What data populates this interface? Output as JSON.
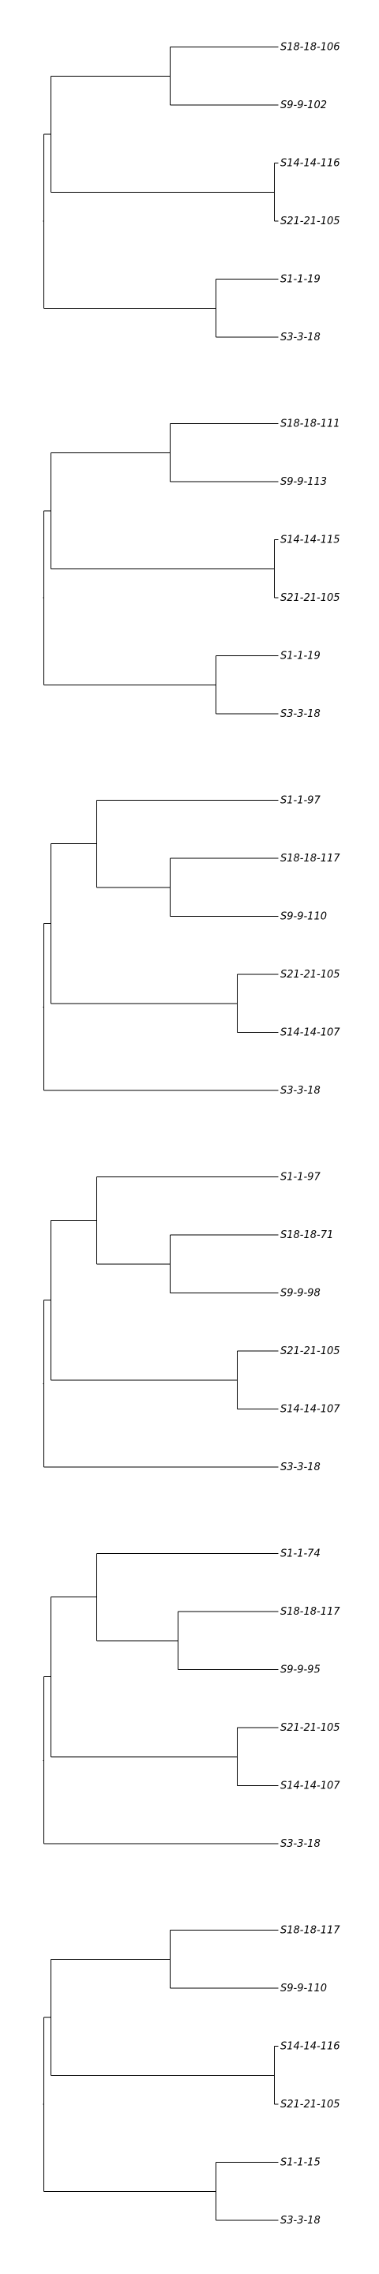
{
  "trees": [
    {
      "id": "tree-1",
      "leaves": [
        {
          "id": "a",
          "label": "S18-18-106"
        },
        {
          "id": "b",
          "label": "S9-9-102"
        },
        {
          "id": "c",
          "label": "S14-14-116"
        },
        {
          "id": "d",
          "label": "S21-21-105"
        },
        {
          "id": "e",
          "label": "S1-1-19"
        },
        {
          "id": "f",
          "label": "S3-3-18"
        }
      ],
      "clades": [
        {
          "id": "n1",
          "children": [
            "a",
            "b"
          ]
        },
        {
          "id": "n2",
          "children": [
            "c",
            "d"
          ]
        },
        {
          "id": "n3",
          "children": [
            "e",
            "f"
          ]
        },
        {
          "id": "n4",
          "children": [
            "n1",
            "n2"
          ]
        },
        {
          "id": "root",
          "children": [
            "n4",
            "n3"
          ]
        }
      ]
    },
    {
      "id": "tree-2",
      "leaves": [
        {
          "id": "a",
          "label": "S18-18-111"
        },
        {
          "id": "b",
          "label": "S9-9-113"
        },
        {
          "id": "c",
          "label": "S14-14-115"
        },
        {
          "id": "d",
          "label": "S21-21-105"
        },
        {
          "id": "e",
          "label": "S1-1-19"
        },
        {
          "id": "f",
          "label": "S3-3-18"
        }
      ],
      "clades": [
        {
          "id": "n1",
          "children": [
            "a",
            "b"
          ]
        },
        {
          "id": "n2",
          "children": [
            "c",
            "d"
          ]
        },
        {
          "id": "n3",
          "children": [
            "e",
            "f"
          ]
        },
        {
          "id": "n4",
          "children": [
            "n1",
            "n2"
          ]
        },
        {
          "id": "root",
          "children": [
            "n4",
            "n3"
          ]
        }
      ]
    },
    {
      "id": "tree-3",
      "leaves": [
        {
          "id": "a",
          "label": "S1-1-97"
        },
        {
          "id": "b",
          "label": "S18-18-117"
        },
        {
          "id": "c",
          "label": "S9-9-110"
        },
        {
          "id": "d",
          "label": "S21-21-105"
        },
        {
          "id": "e",
          "label": "S14-14-107"
        },
        {
          "id": "f",
          "label": "S3-3-18"
        }
      ],
      "clades": [
        {
          "id": "n1",
          "children": [
            "b",
            "c"
          ]
        },
        {
          "id": "n2",
          "children": [
            "a",
            "n1"
          ]
        },
        {
          "id": "n3",
          "children": [
            "d",
            "e"
          ]
        },
        {
          "id": "n4",
          "children": [
            "n2",
            "n3"
          ]
        },
        {
          "id": "root",
          "children": [
            "n4",
            "f"
          ]
        }
      ]
    },
    {
      "id": "tree-4",
      "leaves": [
        {
          "id": "a",
          "label": "S1-1-97"
        },
        {
          "id": "b",
          "label": "S18-18-71"
        },
        {
          "id": "c",
          "label": "S9-9-98"
        },
        {
          "id": "d",
          "label": "S21-21-105"
        },
        {
          "id": "e",
          "label": "S14-14-107"
        },
        {
          "id": "f",
          "label": "S3-3-18"
        }
      ],
      "clades": [
        {
          "id": "n1",
          "children": [
            "b",
            "c"
          ]
        },
        {
          "id": "n2",
          "children": [
            "a",
            "n1"
          ]
        },
        {
          "id": "n3",
          "children": [
            "d",
            "e"
          ]
        },
        {
          "id": "n4",
          "children": [
            "n2",
            "n3"
          ]
        },
        {
          "id": "root",
          "children": [
            "n4",
            "f"
          ]
        }
      ]
    },
    {
      "id": "tree-5",
      "leaves": [
        {
          "id": "a",
          "label": "S1-1-74"
        },
        {
          "id": "b",
          "label": "S18-18-117"
        },
        {
          "id": "c",
          "label": "S9-9-95"
        },
        {
          "id": "d",
          "label": "S21-21-105"
        },
        {
          "id": "e",
          "label": "S14-14-107"
        },
        {
          "id": "f",
          "label": "S3-3-18"
        }
      ],
      "clades": [
        {
          "id": "n1",
          "children": [
            "b",
            "c"
          ]
        },
        {
          "id": "n2",
          "children": [
            "a",
            "n1"
          ]
        },
        {
          "id": "n3",
          "children": [
            "d",
            "e"
          ]
        },
        {
          "id": "n4",
          "children": [
            "n2",
            "n3"
          ]
        },
        {
          "id": "root",
          "children": [
            "n4",
            "f"
          ]
        }
      ]
    },
    {
      "id": "tree-6",
      "leaves": [
        {
          "id": "a",
          "label": "S18-18-117"
        },
        {
          "id": "b",
          "label": "S9-9-110"
        },
        {
          "id": "c",
          "label": "S14-14-116"
        },
        {
          "id": "d",
          "label": "S21-21-105"
        },
        {
          "id": "e",
          "label": "S1-1-15"
        },
        {
          "id": "f",
          "label": "S3-3-18"
        }
      ],
      "clades": [
        {
          "id": "n1",
          "children": [
            "a",
            "b"
          ]
        },
        {
          "id": "n2",
          "children": [
            "c",
            "d"
          ]
        },
        {
          "id": "n3",
          "children": [
            "e",
            "f"
          ]
        },
        {
          "id": "n4",
          "children": [
            "n1",
            "n2"
          ]
        },
        {
          "id": "root",
          "children": [
            "n4",
            "n3"
          ]
        }
      ]
    }
  ]
}
